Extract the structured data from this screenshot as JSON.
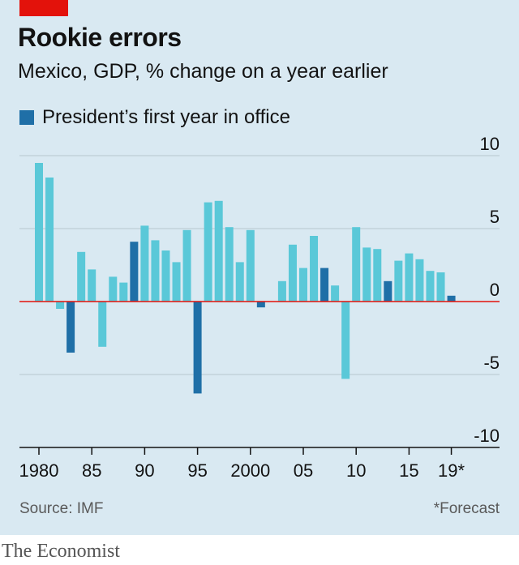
{
  "header": {
    "title": "Rookie errors",
    "subtitle": "Mexico, GDP, % change on a year earlier"
  },
  "legend": {
    "label": "President’s first year in office"
  },
  "footer": {
    "source": "Source: IMF",
    "footnote": "*Forecast",
    "brand": "The Economist"
  },
  "colors": {
    "background": "#d9e9f2",
    "bar": "#5ac8d8",
    "highlight": "#1f6fa7",
    "zero_line": "#e3120b",
    "accent": "#e3120b"
  },
  "chart_data": {
    "type": "bar",
    "title": "Rookie errors",
    "subtitle": "Mexico, GDP, % change on a year earlier",
    "x": [
      1980,
      1981,
      1982,
      1983,
      1984,
      1985,
      1986,
      1987,
      1988,
      1989,
      1990,
      1991,
      1992,
      1993,
      1994,
      1995,
      1996,
      1997,
      1998,
      1999,
      2000,
      2001,
      2002,
      2003,
      2004,
      2005,
      2006,
      2007,
      2008,
      2009,
      2010,
      2011,
      2012,
      2013,
      2014,
      2015,
      2016,
      2017,
      2018,
      2019
    ],
    "values": [
      9.5,
      8.5,
      -0.5,
      -3.5,
      3.4,
      2.2,
      -3.1,
      1.7,
      1.3,
      4.1,
      5.2,
      4.2,
      3.5,
      2.7,
      4.9,
      -6.3,
      6.8,
      6.9,
      5.1,
      2.7,
      4.9,
      -0.4,
      0.0,
      1.4,
      3.9,
      2.3,
      4.5,
      2.3,
      1.1,
      -5.3,
      5.1,
      3.7,
      3.6,
      1.4,
      2.8,
      3.3,
      2.9,
      2.1,
      2.0,
      0.4
    ],
    "highlight_years": [
      1983,
      1989,
      1995,
      2001,
      2007,
      2013,
      2019
    ],
    "forecast_years": [
      2019
    ],
    "legend": [
      "President’s first year in office"
    ],
    "legend_position": "top-left",
    "ylim": [
      -10,
      10
    ],
    "yticks": [
      10,
      5,
      0,
      -5,
      -10
    ],
    "ytick_labels": [
      "10",
      "5",
      "0",
      "-5",
      "-10"
    ],
    "xtick_years": [
      1980,
      1985,
      1990,
      1995,
      2000,
      2005,
      2010,
      2015,
      2019
    ],
    "xtick_labels": [
      "1980",
      "85",
      "90",
      "95",
      "2000",
      "05",
      "10",
      "15",
      "19*"
    ],
    "grid": "horizontal",
    "ylabel_position": "right"
  }
}
